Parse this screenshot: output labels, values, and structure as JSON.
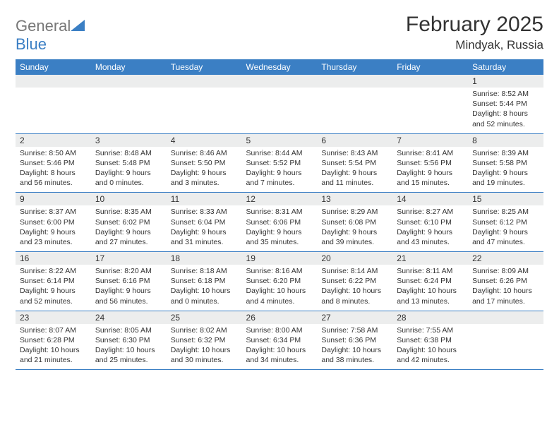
{
  "brand": {
    "name_gray": "General",
    "name_blue": "Blue"
  },
  "title": "February 2025",
  "location": "Mindyak, Russia",
  "weekdays": [
    "Sunday",
    "Monday",
    "Tuesday",
    "Wednesday",
    "Thursday",
    "Friday",
    "Saturday"
  ],
  "colors": {
    "header_bg": "#3b7fc4",
    "header_text": "#ffffff",
    "daynum_bg": "#eceded",
    "text": "#333333",
    "rule": "#3b7fc4"
  },
  "grid": [
    [
      {
        "n": "",
        "sr": "",
        "ss": "",
        "dl": ""
      },
      {
        "n": "",
        "sr": "",
        "ss": "",
        "dl": ""
      },
      {
        "n": "",
        "sr": "",
        "ss": "",
        "dl": ""
      },
      {
        "n": "",
        "sr": "",
        "ss": "",
        "dl": ""
      },
      {
        "n": "",
        "sr": "",
        "ss": "",
        "dl": ""
      },
      {
        "n": "",
        "sr": "",
        "ss": "",
        "dl": ""
      },
      {
        "n": "1",
        "sr": "Sunrise: 8:52 AM",
        "ss": "Sunset: 5:44 PM",
        "dl": "Daylight: 8 hours and 52 minutes."
      }
    ],
    [
      {
        "n": "2",
        "sr": "Sunrise: 8:50 AM",
        "ss": "Sunset: 5:46 PM",
        "dl": "Daylight: 8 hours and 56 minutes."
      },
      {
        "n": "3",
        "sr": "Sunrise: 8:48 AM",
        "ss": "Sunset: 5:48 PM",
        "dl": "Daylight: 9 hours and 0 minutes."
      },
      {
        "n": "4",
        "sr": "Sunrise: 8:46 AM",
        "ss": "Sunset: 5:50 PM",
        "dl": "Daylight: 9 hours and 3 minutes."
      },
      {
        "n": "5",
        "sr": "Sunrise: 8:44 AM",
        "ss": "Sunset: 5:52 PM",
        "dl": "Daylight: 9 hours and 7 minutes."
      },
      {
        "n": "6",
        "sr": "Sunrise: 8:43 AM",
        "ss": "Sunset: 5:54 PM",
        "dl": "Daylight: 9 hours and 11 minutes."
      },
      {
        "n": "7",
        "sr": "Sunrise: 8:41 AM",
        "ss": "Sunset: 5:56 PM",
        "dl": "Daylight: 9 hours and 15 minutes."
      },
      {
        "n": "8",
        "sr": "Sunrise: 8:39 AM",
        "ss": "Sunset: 5:58 PM",
        "dl": "Daylight: 9 hours and 19 minutes."
      }
    ],
    [
      {
        "n": "9",
        "sr": "Sunrise: 8:37 AM",
        "ss": "Sunset: 6:00 PM",
        "dl": "Daylight: 9 hours and 23 minutes."
      },
      {
        "n": "10",
        "sr": "Sunrise: 8:35 AM",
        "ss": "Sunset: 6:02 PM",
        "dl": "Daylight: 9 hours and 27 minutes."
      },
      {
        "n": "11",
        "sr": "Sunrise: 8:33 AM",
        "ss": "Sunset: 6:04 PM",
        "dl": "Daylight: 9 hours and 31 minutes."
      },
      {
        "n": "12",
        "sr": "Sunrise: 8:31 AM",
        "ss": "Sunset: 6:06 PM",
        "dl": "Daylight: 9 hours and 35 minutes."
      },
      {
        "n": "13",
        "sr": "Sunrise: 8:29 AM",
        "ss": "Sunset: 6:08 PM",
        "dl": "Daylight: 9 hours and 39 minutes."
      },
      {
        "n": "14",
        "sr": "Sunrise: 8:27 AM",
        "ss": "Sunset: 6:10 PM",
        "dl": "Daylight: 9 hours and 43 minutes."
      },
      {
        "n": "15",
        "sr": "Sunrise: 8:25 AM",
        "ss": "Sunset: 6:12 PM",
        "dl": "Daylight: 9 hours and 47 minutes."
      }
    ],
    [
      {
        "n": "16",
        "sr": "Sunrise: 8:22 AM",
        "ss": "Sunset: 6:14 PM",
        "dl": "Daylight: 9 hours and 52 minutes."
      },
      {
        "n": "17",
        "sr": "Sunrise: 8:20 AM",
        "ss": "Sunset: 6:16 PM",
        "dl": "Daylight: 9 hours and 56 minutes."
      },
      {
        "n": "18",
        "sr": "Sunrise: 8:18 AM",
        "ss": "Sunset: 6:18 PM",
        "dl": "Daylight: 10 hours and 0 minutes."
      },
      {
        "n": "19",
        "sr": "Sunrise: 8:16 AM",
        "ss": "Sunset: 6:20 PM",
        "dl": "Daylight: 10 hours and 4 minutes."
      },
      {
        "n": "20",
        "sr": "Sunrise: 8:14 AM",
        "ss": "Sunset: 6:22 PM",
        "dl": "Daylight: 10 hours and 8 minutes."
      },
      {
        "n": "21",
        "sr": "Sunrise: 8:11 AM",
        "ss": "Sunset: 6:24 PM",
        "dl": "Daylight: 10 hours and 13 minutes."
      },
      {
        "n": "22",
        "sr": "Sunrise: 8:09 AM",
        "ss": "Sunset: 6:26 PM",
        "dl": "Daylight: 10 hours and 17 minutes."
      }
    ],
    [
      {
        "n": "23",
        "sr": "Sunrise: 8:07 AM",
        "ss": "Sunset: 6:28 PM",
        "dl": "Daylight: 10 hours and 21 minutes."
      },
      {
        "n": "24",
        "sr": "Sunrise: 8:05 AM",
        "ss": "Sunset: 6:30 PM",
        "dl": "Daylight: 10 hours and 25 minutes."
      },
      {
        "n": "25",
        "sr": "Sunrise: 8:02 AM",
        "ss": "Sunset: 6:32 PM",
        "dl": "Daylight: 10 hours and 30 minutes."
      },
      {
        "n": "26",
        "sr": "Sunrise: 8:00 AM",
        "ss": "Sunset: 6:34 PM",
        "dl": "Daylight: 10 hours and 34 minutes."
      },
      {
        "n": "27",
        "sr": "Sunrise: 7:58 AM",
        "ss": "Sunset: 6:36 PM",
        "dl": "Daylight: 10 hours and 38 minutes."
      },
      {
        "n": "28",
        "sr": "Sunrise: 7:55 AM",
        "ss": "Sunset: 6:38 PM",
        "dl": "Daylight: 10 hours and 42 minutes."
      },
      {
        "n": "",
        "sr": "",
        "ss": "",
        "dl": ""
      }
    ]
  ]
}
